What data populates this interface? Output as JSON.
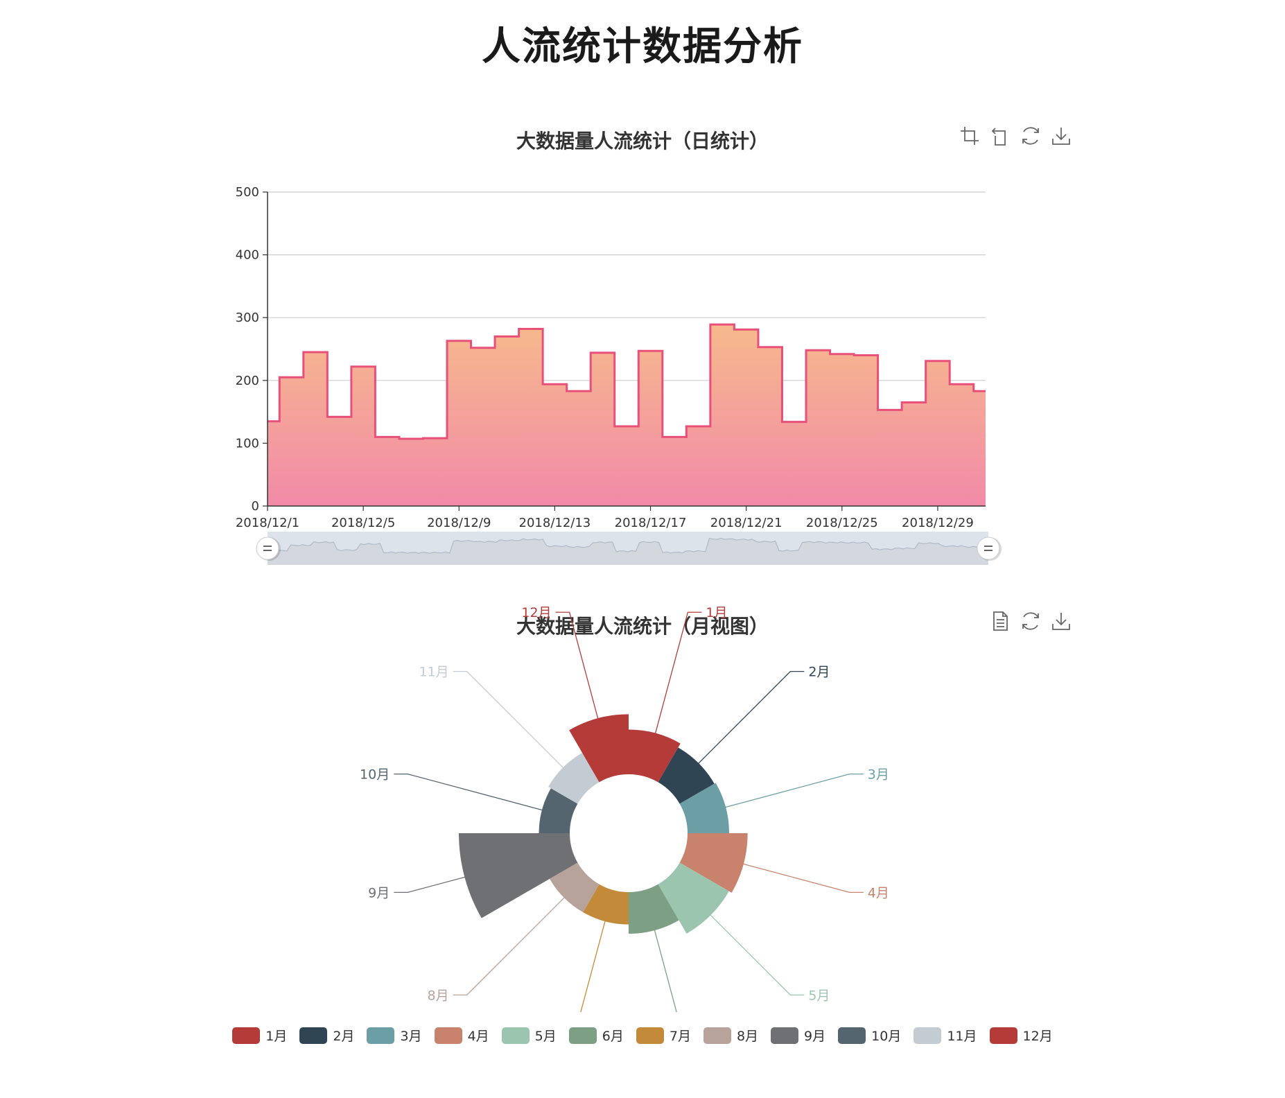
{
  "page": {
    "title": "人流统计数据分析"
  },
  "daily_chart": {
    "title": "大数据量人流统计（日统计）",
    "toolbox": [
      "zoom-icon",
      "zoom-reset-icon",
      "restore-icon",
      "save-image-icon"
    ]
  },
  "monthly_chart": {
    "title": "大数据量人流统计（月视图）",
    "toolbox": [
      "data-view-icon",
      "restore-icon",
      "save-image-icon"
    ]
  },
  "colors": {
    "area_top": "#f6b98c",
    "area_bottom": "#f28aa8",
    "line": "#e8507a",
    "grid": "#cccccc",
    "slider_fill": "#dde3ea",
    "slider_line": "#b0bac6"
  },
  "chart_data": [
    {
      "type": "area",
      "step": true,
      "x": [
        "2018/12/1",
        "2018/12/2",
        "2018/12/3",
        "2018/12/4",
        "2018/12/5",
        "2018/12/6",
        "2018/12/7",
        "2018/12/8",
        "2018/12/9",
        "2018/12/10",
        "2018/12/11",
        "2018/12/12",
        "2018/12/13",
        "2018/12/14",
        "2018/12/15",
        "2018/12/16",
        "2018/12/17",
        "2018/12/18",
        "2018/12/19",
        "2018/12/20",
        "2018/12/21",
        "2018/12/22",
        "2018/12/23",
        "2018/12/24",
        "2018/12/25",
        "2018/12/26",
        "2018/12/27",
        "2018/12/28",
        "2018/12/29",
        "2018/12/30",
        "2018/12/31"
      ],
      "values": [
        135,
        205,
        245,
        142,
        222,
        110,
        107,
        108,
        263,
        252,
        270,
        282,
        194,
        183,
        244,
        127,
        247,
        110,
        127,
        289,
        281,
        253,
        134,
        248,
        242,
        240,
        153,
        165,
        231,
        194,
        183
      ],
      "xticks": [
        "2018/12/1",
        "2018/12/5",
        "2018/12/9",
        "2018/12/13",
        "2018/12/17",
        "2018/12/21",
        "2018/12/25",
        "2018/12/29"
      ],
      "yticks": [
        0,
        100,
        200,
        300,
        400,
        500
      ],
      "ylim": [
        0,
        500
      ],
      "grid": true,
      "data_zoom": {
        "start": 0,
        "end": 100
      }
    },
    {
      "type": "pie",
      "rose": "radius",
      "categories": [
        "1月",
        "2月",
        "3月",
        "4月",
        "5月",
        "6月",
        "7月",
        "8月",
        "9月",
        "10月",
        "11月",
        "12月"
      ],
      "values": [
        100,
        85,
        90,
        150,
        140,
        90,
        60,
        60,
        315,
        55,
        65,
        150
      ],
      "colors": [
        "#b53b39",
        "#2f4554",
        "#6b9ea5",
        "#c9826b",
        "#9cc5b0",
        "#7d9f84",
        "#c38a3a",
        "#b8a39a",
        "#6e7074",
        "#546570",
        "#c4ccd3",
        "#b53b39"
      ],
      "legend": "bottom"
    }
  ]
}
